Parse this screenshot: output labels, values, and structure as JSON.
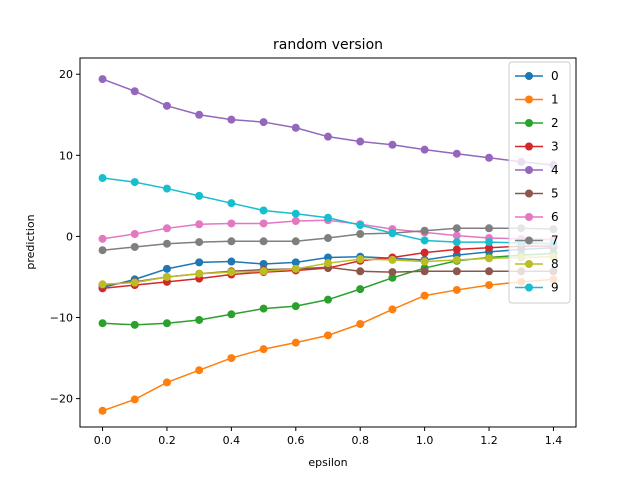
{
  "chart_data": {
    "type": "line",
    "title": "random version",
    "xlabel": "epsilon",
    "ylabel": "prediction",
    "xlim": [
      -0.07,
      1.47
    ],
    "ylim": [
      -23.5,
      22.0
    ],
    "xticks": [
      0.0,
      0.2,
      0.4,
      0.6,
      0.8,
      1.0,
      1.2,
      1.4
    ],
    "xtick_labels": [
      "0.0",
      "0.2",
      "0.4",
      "0.6",
      "0.8",
      "1.0",
      "1.2",
      "1.4"
    ],
    "yticks": [
      -20,
      -10,
      0,
      10,
      20
    ],
    "ytick_labels": [
      "−20",
      "−10",
      "0",
      "10",
      "20"
    ],
    "grid": false,
    "legend_position": "top-right",
    "x": [
      0.0,
      0.1,
      0.2,
      0.3,
      0.4,
      0.5,
      0.6,
      0.7,
      0.8,
      0.9,
      1.0,
      1.1,
      1.2,
      1.3,
      1.4
    ],
    "series": [
      {
        "name": "0",
        "color": "#1f77b4",
        "values": [
          -6.3,
          -5.3,
          -4.0,
          -3.2,
          -3.1,
          -3.4,
          -3.2,
          -2.6,
          -2.5,
          -2.7,
          -2.9,
          -2.3,
          -1.9,
          -1.6,
          -1.4
        ]
      },
      {
        "name": "1",
        "color": "#ff7f0e",
        "values": [
          -21.5,
          -20.1,
          -18.0,
          -16.5,
          -15.0,
          -13.9,
          -13.1,
          -12.2,
          -10.8,
          -9.0,
          -7.3,
          -6.6,
          -6.0,
          -5.6,
          -5.3
        ]
      },
      {
        "name": "2",
        "color": "#2ca02c",
        "values": [
          -10.7,
          -10.9,
          -10.7,
          -10.3,
          -9.6,
          -8.9,
          -8.6,
          -7.8,
          -6.5,
          -5.1,
          -3.9,
          -3.0,
          -2.6,
          -2.3,
          -2.1
        ]
      },
      {
        "name": "3",
        "color": "#d62728",
        "values": [
          -6.4,
          -6.0,
          -5.6,
          -5.2,
          -4.7,
          -4.4,
          -4.2,
          -3.9,
          -3.0,
          -2.6,
          -2.0,
          -1.6,
          -1.4,
          -1.2,
          -1.2
        ]
      },
      {
        "name": "4",
        "color": "#9467bd",
        "values": [
          19.4,
          17.9,
          16.1,
          15.0,
          14.4,
          14.1,
          13.4,
          12.3,
          11.7,
          11.3,
          10.7,
          10.2,
          9.7,
          9.2,
          8.8
        ]
      },
      {
        "name": "5",
        "color": "#8c564b",
        "values": [
          -6.0,
          -5.6,
          -5.0,
          -4.6,
          -4.3,
          -4.1,
          -4.0,
          -3.8,
          -4.3,
          -4.4,
          -4.3,
          -4.3,
          -4.3,
          -4.3,
          -4.3
        ]
      },
      {
        "name": "6",
        "color": "#e377c2",
        "values": [
          -0.3,
          0.3,
          1.0,
          1.5,
          1.6,
          1.6,
          1.9,
          2.0,
          1.5,
          0.9,
          0.5,
          0.1,
          -0.2,
          -0.3,
          -0.4
        ]
      },
      {
        "name": "7",
        "color": "#7f7f7f",
        "values": [
          -1.7,
          -1.3,
          -0.9,
          -0.7,
          -0.6,
          -0.6,
          -0.6,
          -0.2,
          0.3,
          0.4,
          0.7,
          1.0,
          1.0,
          1.0,
          0.9
        ]
      },
      {
        "name": "8",
        "color": "#bcbd22",
        "values": [
          -5.9,
          -5.7,
          -5.0,
          -4.6,
          -4.4,
          -4.3,
          -4.0,
          -3.3,
          -2.8,
          -2.9,
          -3.1,
          -2.9,
          -2.7,
          -2.6,
          -2.5
        ]
      },
      {
        "name": "9",
        "color": "#17becf",
        "values": [
          7.2,
          6.7,
          5.9,
          5.0,
          4.1,
          3.2,
          2.8,
          2.3,
          1.4,
          0.4,
          -0.5,
          -0.7,
          -0.7,
          -0.8,
          -0.9
        ]
      }
    ]
  }
}
